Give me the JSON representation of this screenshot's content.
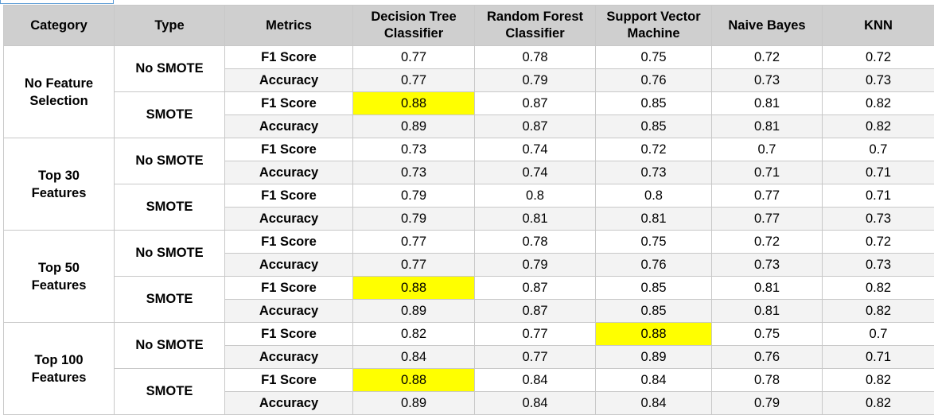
{
  "table": {
    "headers": {
      "category": "Category",
      "type": "Type",
      "metrics": "Metrics",
      "dt": [
        "Decision Tree",
        "Classifier"
      ],
      "rf": [
        "Random Forest",
        "Classifier"
      ],
      "svm": [
        "Support Vector",
        "Machine"
      ],
      "nb": "Naive Bayes",
      "knn": "KNN"
    },
    "groups": [
      {
        "category": [
          "No Feature",
          "Selection"
        ],
        "subs": [
          {
            "type": "No SMOTE",
            "rows": [
              {
                "metric": "F1 Score",
                "values": [
                  "0.77",
                  "0.78",
                  "0.75",
                  "0.72",
                  "0.72"
                ]
              },
              {
                "metric": "Accuracy",
                "values": [
                  "0.77",
                  "0.79",
                  "0.76",
                  "0.73",
                  "0.73"
                ]
              }
            ]
          },
          {
            "type": "SMOTE",
            "rows": [
              {
                "metric": "F1 Score",
                "values": [
                  "0.88",
                  "0.87",
                  "0.85",
                  "0.81",
                  "0.82"
                ]
              },
              {
                "metric": "Accuracy",
                "values": [
                  "0.89",
                  "0.87",
                  "0.85",
                  "0.81",
                  "0.82"
                ]
              }
            ]
          }
        ]
      },
      {
        "category": [
          "Top 30",
          "Features"
        ],
        "subs": [
          {
            "type": "No SMOTE",
            "rows": [
              {
                "metric": "F1 Score",
                "values": [
                  "0.73",
                  "0.74",
                  "0.72",
                  "0.7",
                  "0.7"
                ]
              },
              {
                "metric": "Accuracy",
                "values": [
                  "0.73",
                  "0.74",
                  "0.73",
                  "0.71",
                  "0.71"
                ]
              }
            ]
          },
          {
            "type": "SMOTE",
            "rows": [
              {
                "metric": "F1 Score",
                "values": [
                  "0.79",
                  "0.8",
                  "0.8",
                  "0.77",
                  "0.71"
                ]
              },
              {
                "metric": "Accuracy",
                "values": [
                  "0.79",
                  "0.81",
                  "0.81",
                  "0.77",
                  "0.73"
                ]
              }
            ]
          }
        ]
      },
      {
        "category": [
          "Top 50",
          "Features"
        ],
        "subs": [
          {
            "type": "No SMOTE",
            "rows": [
              {
                "metric": "F1 Score",
                "values": [
                  "0.77",
                  "0.78",
                  "0.75",
                  "0.72",
                  "0.72"
                ]
              },
              {
                "metric": "Accuracy",
                "values": [
                  "0.77",
                  "0.79",
                  "0.76",
                  "0.73",
                  "0.73"
                ]
              }
            ]
          },
          {
            "type": "SMOTE",
            "rows": [
              {
                "metric": "F1 Score",
                "values": [
                  "0.88",
                  "0.87",
                  "0.85",
                  "0.81",
                  "0.82"
                ]
              },
              {
                "metric": "Accuracy",
                "values": [
                  "0.89",
                  "0.87",
                  "0.85",
                  "0.81",
                  "0.82"
                ]
              }
            ]
          }
        ]
      },
      {
        "category": [
          "Top 100",
          "Features"
        ],
        "subs": [
          {
            "type": "No SMOTE",
            "rows": [
              {
                "metric": "F1 Score",
                "values": [
                  "0.82",
                  "0.77",
                  "0.88",
                  "0.75",
                  "0.7"
                ]
              },
              {
                "metric": "Accuracy",
                "values": [
                  "0.84",
                  "0.77",
                  "0.89",
                  "0.76",
                  "0.71"
                ]
              }
            ]
          },
          {
            "type": "SMOTE",
            "rows": [
              {
                "metric": "F1 Score",
                "values": [
                  "0.88",
                  "0.84",
                  "0.84",
                  "0.78",
                  "0.82"
                ]
              },
              {
                "metric": "Accuracy",
                "values": [
                  "0.89",
                  "0.84",
                  "0.84",
                  "0.79",
                  "0.82"
                ]
              }
            ]
          }
        ]
      }
    ],
    "highlight_color": "#ffff00",
    "header_color": "#cfcfcf"
  }
}
